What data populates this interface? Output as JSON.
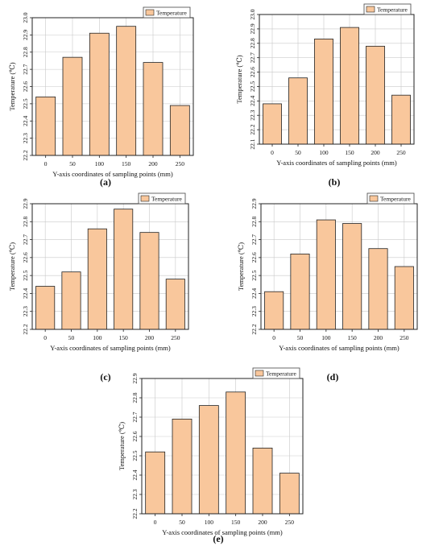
{
  "figure": {
    "captions": [
      "(a)",
      "(b)",
      "(c)",
      "(d)",
      "(e)"
    ]
  },
  "style": {
    "bar_fill": "#f9c79c",
    "bar_stroke": "#222222",
    "grid": "#c9c9c9"
  },
  "chart_data": [
    {
      "type": "bar",
      "categories": [
        "0",
        "50",
        "100",
        "150",
        "200",
        "250"
      ],
      "values": [
        22.54,
        22.77,
        22.91,
        22.95,
        22.74,
        22.49
      ],
      "series": [
        {
          "name": "Temperature",
          "values": [
            22.54,
            22.77,
            22.91,
            22.95,
            22.74,
            22.49
          ]
        }
      ],
      "xlabel": "Y-axis coordinates of sampling points (mm)",
      "ylabel": "Temperature (℃)",
      "ylim": [
        22.2,
        23.0
      ],
      "yticks": [
        "22.2",
        "22.3",
        "22.4",
        "22.5",
        "22.6",
        "22.7",
        "22.8",
        "22.9",
        "23.0"
      ],
      "grid": true,
      "legend": "top-right"
    },
    {
      "type": "bar",
      "categories": [
        "0",
        "50",
        "100",
        "150",
        "200",
        "250"
      ],
      "values": [
        22.38,
        22.56,
        22.83,
        22.91,
        22.78,
        22.44
      ],
      "series": [
        {
          "name": "Temperature",
          "values": [
            22.38,
            22.56,
            22.83,
            22.91,
            22.78,
            22.44
          ]
        }
      ],
      "xlabel": "Y-axis coordinates of sampling points (mm)",
      "ylabel": "Temperature (℃)",
      "ylim": [
        22.1,
        23.0
      ],
      "yticks": [
        "22.1",
        "22.2",
        "22.3",
        "22.4",
        "22.5",
        "22.6",
        "22.7",
        "22.8",
        "22.9",
        "23.0"
      ],
      "grid": true,
      "legend": "top-right"
    },
    {
      "type": "bar",
      "categories": [
        "0",
        "50",
        "100",
        "150",
        "200",
        "250"
      ],
      "values": [
        22.44,
        22.52,
        22.76,
        22.87,
        22.74,
        22.48
      ],
      "series": [
        {
          "name": "Temperature",
          "values": [
            22.44,
            22.52,
            22.76,
            22.87,
            22.74,
            22.48
          ]
        }
      ],
      "xlabel": "Y-axis coordinates of sampling points (mm)",
      "ylabel": "Temperature (℃)",
      "ylim": [
        22.2,
        22.9
      ],
      "yticks": [
        "22.2",
        "22.3",
        "22.4",
        "22.5",
        "22.6",
        "22.7",
        "22.8",
        "22.9"
      ],
      "grid": true,
      "legend": "top-right"
    },
    {
      "type": "bar",
      "categories": [
        "0",
        "50",
        "100",
        "150",
        "200",
        "250"
      ],
      "values": [
        22.41,
        22.62,
        22.81,
        22.79,
        22.65,
        22.55
      ],
      "series": [
        {
          "name": "Temperature",
          "values": [
            22.41,
            22.62,
            22.81,
            22.79,
            22.65,
            22.55
          ]
        }
      ],
      "xlabel": "Y-axis coordinates of sampling points (mm)",
      "ylabel": "Temperature (℃)",
      "ylim": [
        22.2,
        22.9
      ],
      "yticks": [
        "22.2",
        "22.3",
        "22.4",
        "22.5",
        "22.6",
        "22.7",
        "22.8",
        "22.9"
      ],
      "grid": true,
      "legend": "top-right"
    },
    {
      "type": "bar",
      "categories": [
        "0",
        "50",
        "100",
        "150",
        "200",
        "250"
      ],
      "values": [
        22.52,
        22.69,
        22.76,
        22.83,
        22.54,
        22.41
      ],
      "series": [
        {
          "name": "Temperature",
          "values": [
            22.52,
            22.69,
            22.76,
            22.83,
            22.54,
            22.41
          ]
        }
      ],
      "xlabel": "Y-axis coordinates of sampling points (mm)",
      "ylabel": "Temperature (℃)",
      "ylim": [
        22.2,
        22.9
      ],
      "yticks": [
        "22.2",
        "22.3",
        "22.4",
        "22.5",
        "22.6",
        "22.7",
        "22.8",
        "22.9"
      ],
      "grid": true,
      "legend": "top-right"
    }
  ]
}
